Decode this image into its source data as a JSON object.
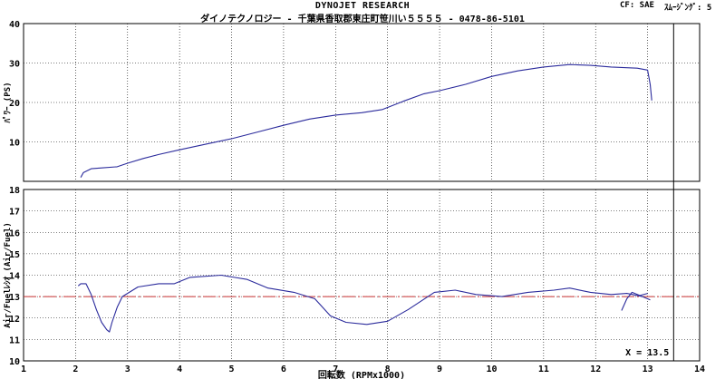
{
  "header": {
    "title": "DYNOJET  RESEARCH",
    "subtitle": "ダイノテクノロジー - 千葉県香取郡東庄町笹川い５５５５ - 0478-86-5101",
    "cf": "CF: SAE",
    "smoothing": "ｽﾑｰｼﾞﾝｸﾞ: 5"
  },
  "colors": {
    "curve": "#2b2b9c",
    "target_line": "#c83232",
    "grid": "#000000",
    "background": "#ffffff"
  },
  "chart_data": [
    {
      "type": "line",
      "ylabel": "ﾊﾟﾜｰ (PS)",
      "xlim": [
        1,
        14
      ],
      "ylim": [
        0,
        40
      ],
      "yticks": [
        10,
        20,
        30,
        40
      ],
      "grid": true,
      "series": [
        {
          "values": [
            [
              2.1,
              1
            ],
            [
              2.15,
              2.2
            ],
            [
              2.3,
              3.2
            ],
            [
              2.5,
              3.4
            ],
            [
              2.8,
              3.7
            ],
            [
              3.0,
              4.6
            ],
            [
              3.3,
              5.8
            ],
            [
              3.6,
              6.8
            ],
            [
              4.0,
              8.0
            ],
            [
              4.5,
              9.4
            ],
            [
              5.0,
              10.8
            ],
            [
              5.5,
              12.5
            ],
            [
              6.0,
              14.2
            ],
            [
              6.5,
              15.8
            ],
            [
              7.0,
              16.8
            ],
            [
              7.5,
              17.4
            ],
            [
              7.9,
              18.2
            ],
            [
              8.3,
              20.3
            ],
            [
              8.7,
              22.2
            ],
            [
              9.0,
              23.0
            ],
            [
              9.5,
              24.6
            ],
            [
              10.0,
              26.6
            ],
            [
              10.5,
              28.0
            ],
            [
              11.0,
              29.0
            ],
            [
              11.5,
              29.6
            ],
            [
              11.9,
              29.4
            ],
            [
              12.3,
              29.0
            ],
            [
              12.8,
              28.7
            ],
            [
              13.0,
              28.2
            ],
            [
              13.05,
              24.5
            ],
            [
              13.08,
              20.5
            ]
          ]
        }
      ]
    },
    {
      "type": "line",
      "ylabel": "Air/Fuelﾚｼｵ (Air/Fuel)",
      "xlabel": "回転数 (RPMx1000)",
      "xlim": [
        1,
        14
      ],
      "ylim": [
        10,
        18
      ],
      "yticks": [
        10,
        11,
        12,
        13,
        14,
        15,
        16,
        17,
        18
      ],
      "xticks": [
        1,
        2,
        3,
        4,
        5,
        6,
        7,
        8,
        9,
        10,
        11,
        12,
        13,
        14
      ],
      "grid": true,
      "target_line": 13,
      "marker_x": 13.5,
      "marker_label": "X = 13.5",
      "series": [
        {
          "values": [
            [
              2.05,
              13.5
            ],
            [
              2.1,
              13.6
            ],
            [
              2.2,
              13.6
            ],
            [
              2.3,
              13.1
            ],
            [
              2.4,
              12.4
            ],
            [
              2.5,
              11.8
            ],
            [
              2.6,
              11.45
            ],
            [
              2.65,
              11.35
            ],
            [
              2.7,
              11.8
            ],
            [
              2.8,
              12.5
            ],
            [
              2.9,
              13.0
            ],
            [
              3.2,
              13.45
            ],
            [
              3.6,
              13.6
            ],
            [
              3.9,
              13.6
            ],
            [
              4.2,
              13.9
            ],
            [
              4.8,
              14.0
            ],
            [
              5.3,
              13.8
            ],
            [
              5.7,
              13.4
            ],
            [
              6.2,
              13.2
            ],
            [
              6.6,
              12.9
            ],
            [
              6.9,
              12.1
            ],
            [
              7.2,
              11.8
            ],
            [
              7.6,
              11.7
            ],
            [
              8.0,
              11.85
            ],
            [
              8.4,
              12.4
            ],
            [
              8.9,
              13.2
            ],
            [
              9.3,
              13.3
            ],
            [
              9.7,
              13.1
            ],
            [
              10.2,
              13.0
            ],
            [
              10.7,
              13.2
            ],
            [
              11.2,
              13.3
            ],
            [
              11.5,
              13.4
            ],
            [
              11.9,
              13.2
            ],
            [
              12.3,
              13.1
            ],
            [
              12.6,
              13.15
            ],
            [
              12.9,
              13.0
            ],
            [
              13.05,
              12.85
            ]
          ]
        },
        {
          "values": [
            [
              12.5,
              12.35
            ],
            [
              12.6,
              12.9
            ],
            [
              12.7,
              13.2
            ],
            [
              12.85,
              13.05
            ],
            [
              13.0,
              13.15
            ]
          ]
        }
      ]
    }
  ]
}
